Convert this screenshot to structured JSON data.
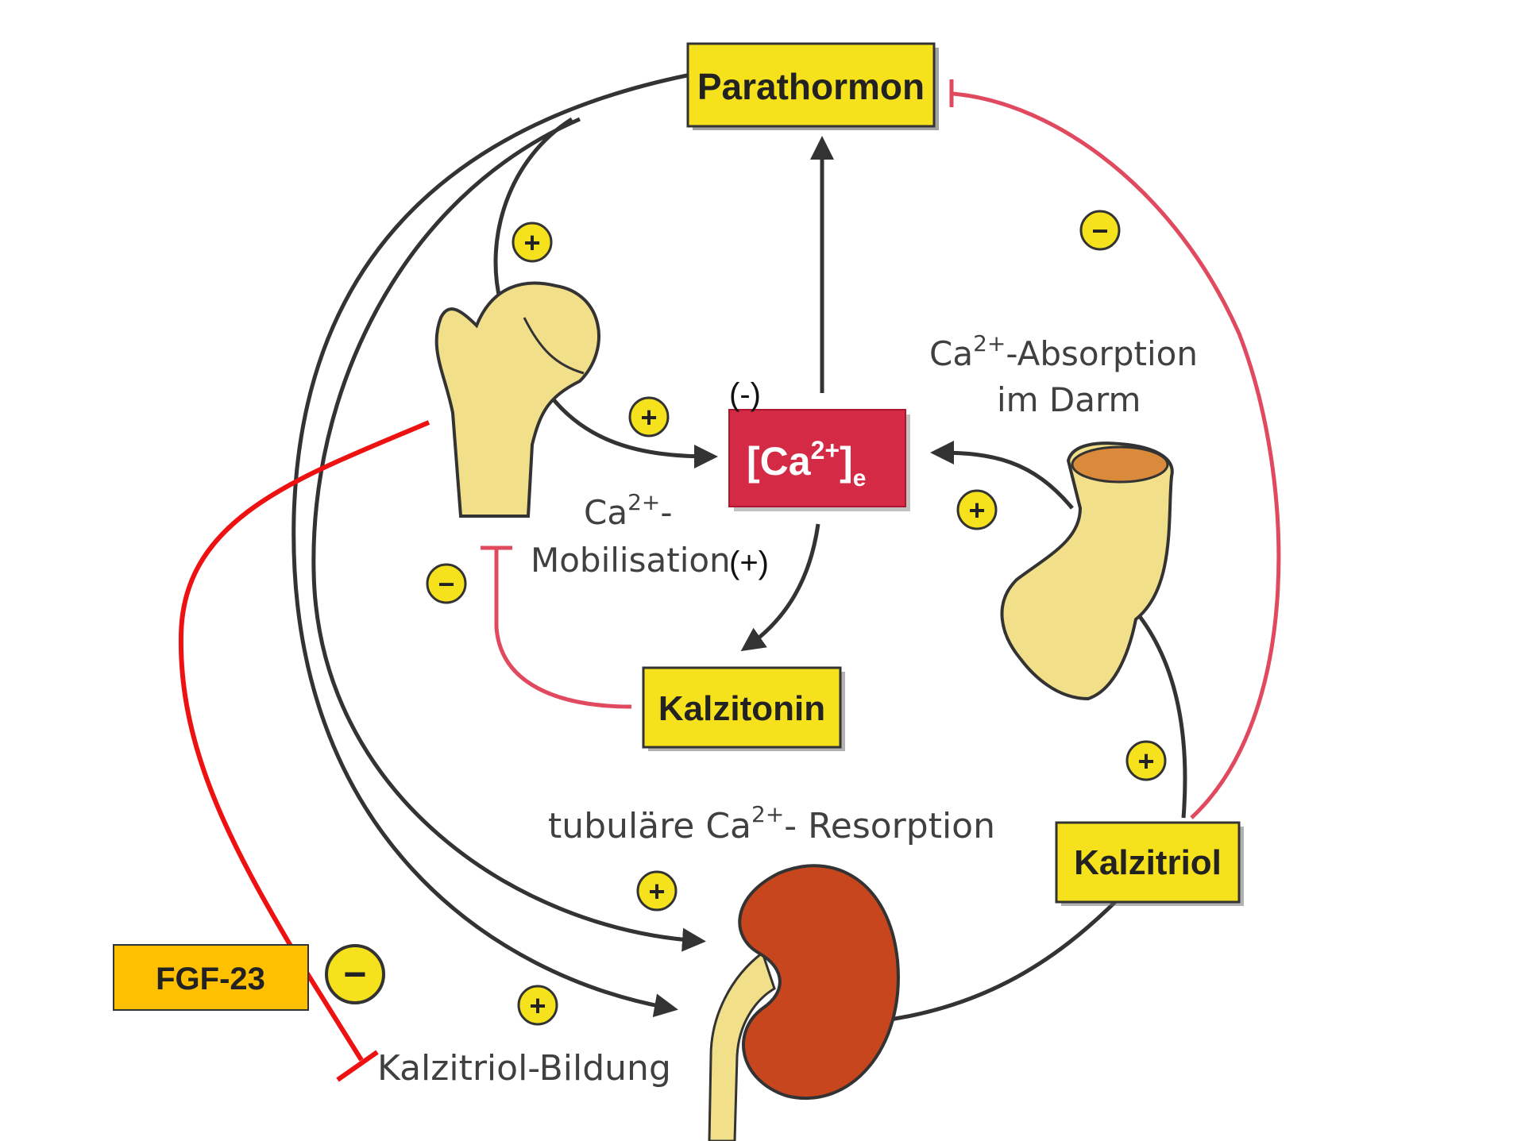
{
  "nodes": {
    "parathormon": "Parathormon",
    "calcium_main": "[Ca",
    "calcium_sup": "2+",
    "calcium_close": "]",
    "calcium_sub": "e",
    "kalzitonin": "Kalzitonin",
    "kalzitriol": "Kalzitriol",
    "fgf23": "FGF-23"
  },
  "labels": {
    "mobilisation_ca": "Ca",
    "mobilisation_sup": "2+",
    "mobilisation_dash": "-",
    "mobilisation_word": "Mobilisation",
    "absorption_ca": "Ca",
    "absorption_sup": "2+",
    "absorption_rest": "-Absorption",
    "absorption_line2": "im Darm",
    "resorption_pre": "tubuläre Ca",
    "resorption_sup": "2+",
    "resorption_rest": "- Resorption",
    "kalzitriol_bildung": "Kalzitriol-Bildung",
    "note_minus": "(-)",
    "note_plus": "(+)"
  },
  "signs": {
    "plus": "+",
    "minus": "−"
  },
  "colors": {
    "box_yellow": "#f5e11c",
    "ca_box": "#d42a45",
    "fgf_box": "#ffc000",
    "inhibit_pink": "#e0495e",
    "inhibit_red": "#ee1111",
    "bone": "#f2df8a",
    "kidney": "#c8461e"
  }
}
